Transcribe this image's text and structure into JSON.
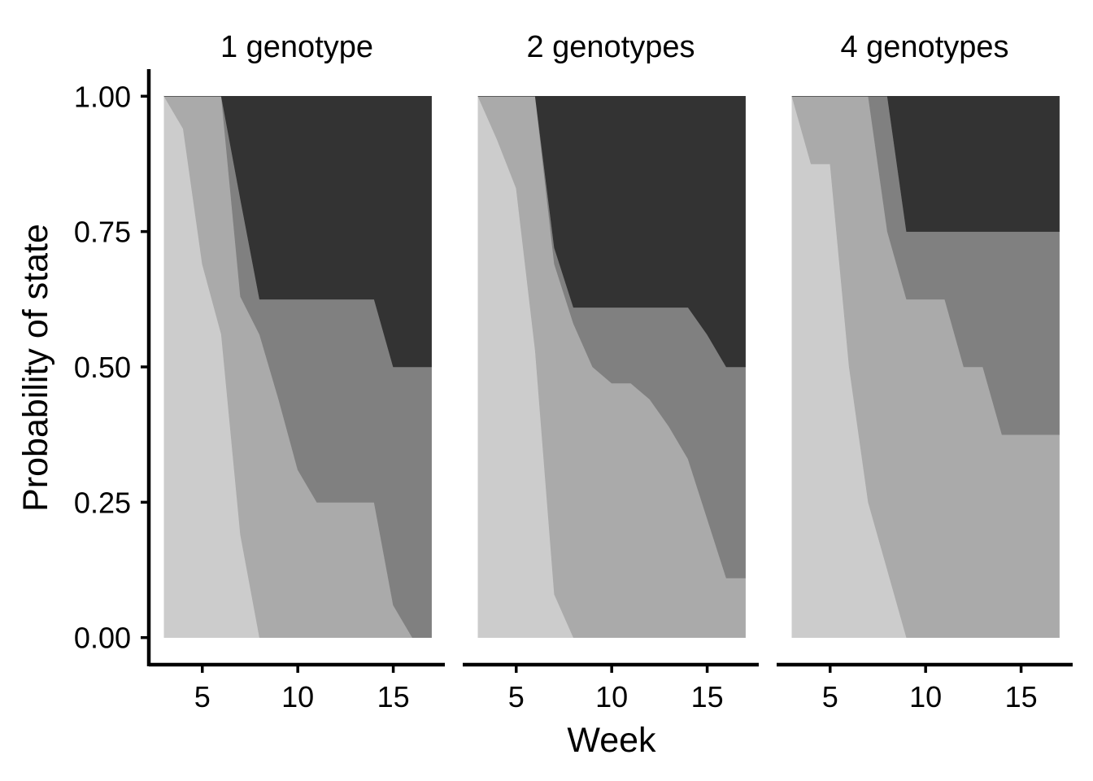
{
  "chart_data": {
    "type": "area",
    "stacked": true,
    "xlabel": "Week",
    "ylabel": "Probability of state",
    "xlim": [
      2.2,
      17.7
    ],
    "ylim": [
      -0.05,
      1.05
    ],
    "x_ticks": [
      5,
      10,
      15
    ],
    "x_tick_labels": [
      "5",
      "10",
      "15"
    ],
    "y_ticks": [
      0,
      0.25,
      0.5,
      0.75,
      1
    ],
    "y_tick_labels": [
      "0.00",
      "0.25",
      "0.50",
      "0.75",
      "1.00"
    ],
    "grid": false,
    "legend": "none",
    "layer_colors": [
      "#cccccc",
      "#aaaaaa",
      "#808080",
      "#333333"
    ],
    "panels": [
      {
        "title": "1 genotype",
        "x": [
          3,
          4,
          5,
          6,
          7,
          8,
          9,
          10,
          11,
          12,
          13,
          14,
          15,
          16,
          17
        ],
        "boundaries": [
          [
            1.0,
            0.94,
            0.69,
            0.56,
            0.19,
            0.0,
            0.0,
            0.0,
            0.0,
            0.0,
            0.0,
            0.0,
            0.0,
            0.0,
            0.0
          ],
          [
            1.0,
            1.0,
            1.0,
            1.0,
            0.63,
            0.56,
            0.44,
            0.31,
            0.25,
            0.25,
            0.25,
            0.25,
            0.06,
            0.0,
            0.0
          ],
          [
            1.0,
            1.0,
            1.0,
            1.0,
            0.81,
            0.625,
            0.625,
            0.625,
            0.625,
            0.625,
            0.625,
            0.625,
            0.5,
            0.5,
            0.5
          ]
        ]
      },
      {
        "title": "2 genotypes",
        "x": [
          3,
          4,
          5,
          6,
          7,
          8,
          9,
          10,
          11,
          12,
          13,
          14,
          15,
          16,
          17
        ],
        "boundaries": [
          [
            1.0,
            0.92,
            0.83,
            0.53,
            0.08,
            0.0,
            0.0,
            0.0,
            0.0,
            0.0,
            0.0,
            0.0,
            0.0,
            0.0,
            0.0
          ],
          [
            1.0,
            1.0,
            1.0,
            1.0,
            0.69,
            0.58,
            0.5,
            0.47,
            0.47,
            0.44,
            0.39,
            0.33,
            0.22,
            0.11,
            0.11
          ],
          [
            1.0,
            1.0,
            1.0,
            1.0,
            0.72,
            0.61,
            0.61,
            0.61,
            0.61,
            0.61,
            0.61,
            0.61,
            0.56,
            0.5,
            0.5
          ]
        ]
      },
      {
        "title": "4 genotypes",
        "x": [
          3,
          4,
          5,
          6,
          7,
          8,
          9,
          10,
          11,
          12,
          13,
          14,
          15,
          16,
          17
        ],
        "boundaries": [
          [
            1.0,
            0.875,
            0.875,
            0.5,
            0.25,
            0.125,
            0.0,
            0.0,
            0.0,
            0.0,
            0.0,
            0.0,
            0.0,
            0.0,
            0.0
          ],
          [
            1.0,
            1.0,
            1.0,
            1.0,
            1.0,
            0.75,
            0.625,
            0.625,
            0.625,
            0.5,
            0.5,
            0.375,
            0.375,
            0.375,
            0.375
          ],
          [
            1.0,
            1.0,
            1.0,
            1.0,
            1.0,
            1.0,
            0.75,
            0.75,
            0.75,
            0.75,
            0.75,
            0.75,
            0.75,
            0.75,
            0.75
          ]
        ]
      }
    ]
  }
}
